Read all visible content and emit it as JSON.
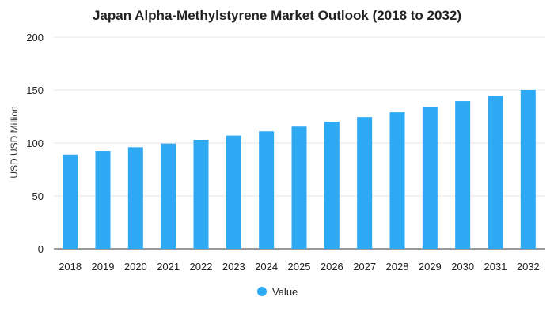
{
  "chart_data": {
    "type": "bar",
    "title": "Japan Alpha-Methylstyrene Market Outlook (2018 to 2032)",
    "xlabel": "",
    "ylabel": "USD USD Million",
    "categories": [
      "2018",
      "2019",
      "2020",
      "2021",
      "2022",
      "2023",
      "2024",
      "2025",
      "2026",
      "2027",
      "2028",
      "2029",
      "2030",
      "2031",
      "2032"
    ],
    "series": [
      {
        "name": "Value",
        "values": [
          89,
          92.5,
          96,
          99.5,
          103,
          107,
          111,
          115.5,
          120,
          124.5,
          129,
          134,
          139.5,
          144.5,
          150
        ]
      }
    ],
    "ylim": [
      0,
      200
    ],
    "yticks": [
      0,
      50,
      100,
      150,
      200
    ],
    "grid": true,
    "legend": "bottom-center",
    "colors": {
      "bar": "#2eaaf5"
    }
  }
}
